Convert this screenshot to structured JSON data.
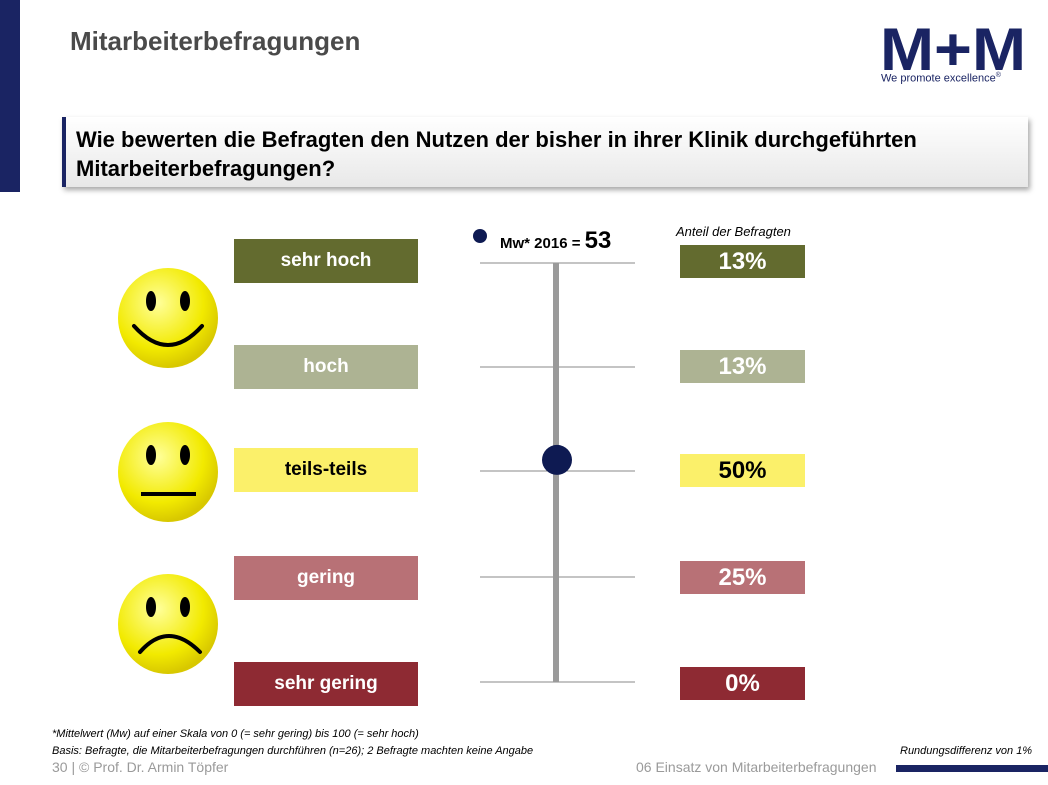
{
  "header": {
    "title": "Mitarbeiterbefragungen",
    "logo_text": "M+M",
    "logo_tagline": "We promote excellence",
    "logo_trademark": "®"
  },
  "question": "Wie bewerten die Befragten den Nutzen der bisher in ihrer Klinik durchgeführten Mitarbeiterbefragungen?",
  "faces": [
    "happy-face-icon",
    "neutral-face-icon",
    "sad-face-icon"
  ],
  "chart_data": {
    "type": "bar",
    "categories": [
      "sehr hoch",
      "hoch",
      "teils-teils",
      "gering",
      "sehr gering"
    ],
    "values": [
      13,
      13,
      50,
      25,
      0
    ],
    "value_labels": [
      "13%",
      "13%",
      "50%",
      "25%",
      "0%"
    ],
    "value_header": "Anteil der Befragten",
    "colors": [
      "#636b2f",
      "#adb393",
      "#fbf06a",
      "#b87176",
      "#8e2a33"
    ],
    "text_colors": [
      "#ffffff",
      "#ffffff",
      "#000000",
      "#ffffff",
      "#ffffff"
    ],
    "mean": {
      "label": "Mw* 2016 =",
      "value": 53,
      "scale_min": 0,
      "scale_max": 100,
      "color": "#0e1a52"
    }
  },
  "footer": {
    "note1": "*Mittelwert (Mw) auf einer Skala von 0 (= sehr gering) bis 100 (= sehr hoch)",
    "note2": "Basis: Befragte, die Mitarbeiterbefragungen durchführen (n=26); 2 Befragte machten keine Angabe",
    "rounding": "Rundungsdifferenz von 1%",
    "page": "30  |  © Prof. Dr. Armin Töpfer",
    "section": "06 Einsatz von Mitarbeiterbefragungen"
  }
}
